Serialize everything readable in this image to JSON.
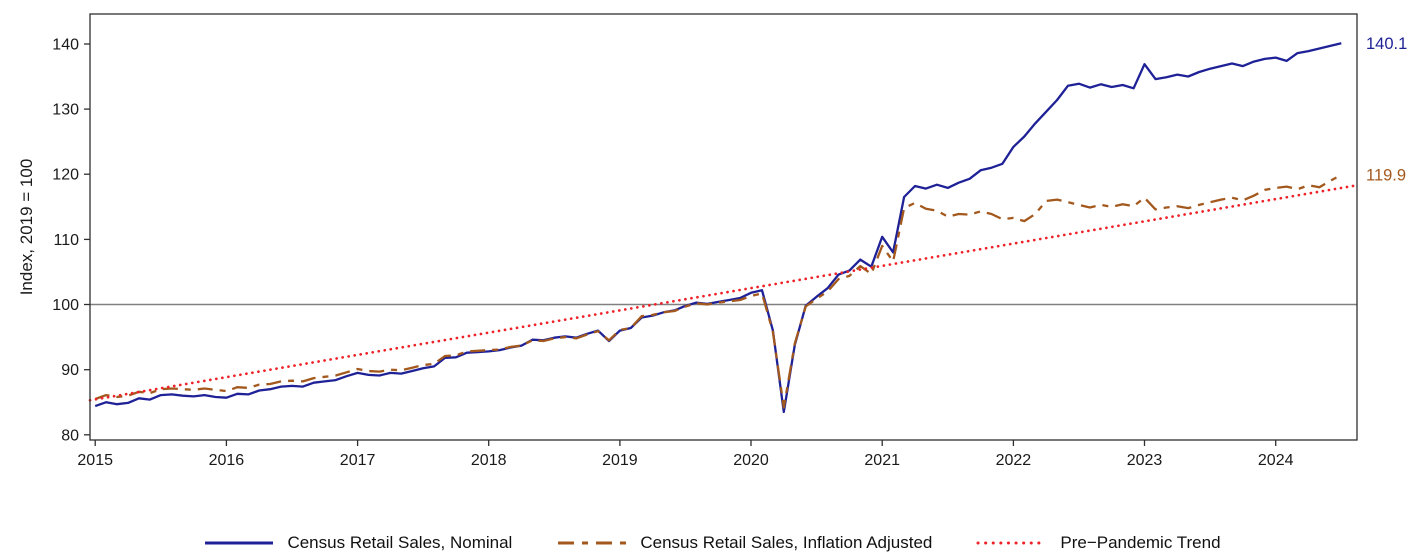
{
  "chart_data": {
    "type": "line",
    "title": "",
    "ylabel": "Index, 2019 = 100",
    "x_start": 2015.0,
    "x_step": 0.0833333,
    "xlim": [
      2014.96,
      2024.62
    ],
    "ylim": [
      79.2,
      144.6
    ],
    "yticks": [
      80,
      90,
      100,
      110,
      120,
      130,
      140
    ],
    "xticks": [
      2015,
      2016,
      2017,
      2018,
      2019,
      2020,
      2021,
      2022,
      2023,
      2024
    ],
    "reference_line_y": 100,
    "grid": "off",
    "legend_position": "bottom",
    "colors": {
      "axis": "#2f2f2f",
      "text": "#1a1a1a",
      "reference": "#808080",
      "nominal": "#1f2297",
      "real": "#a3591e",
      "trend": "#ee2228"
    },
    "series": [
      {
        "key": "nominal",
        "name": "Census Retail Sales, Nominal",
        "color": "#1f2297",
        "style": "solid",
        "end_label": "140.1",
        "values": [
          84.4,
          85.0,
          84.7,
          84.9,
          85.6,
          85.4,
          86.1,
          86.2,
          86.0,
          85.9,
          86.1,
          85.8,
          85.7,
          86.3,
          86.2,
          86.8,
          87.0,
          87.4,
          87.5,
          87.4,
          88.0,
          88.2,
          88.4,
          89.0,
          89.5,
          89.2,
          89.1,
          89.5,
          89.4,
          89.8,
          90.2,
          90.5,
          91.8,
          91.9,
          92.6,
          92.7,
          92.8,
          93.0,
          93.4,
          93.7,
          94.6,
          94.5,
          94.9,
          95.1,
          94.9,
          95.5,
          96.0,
          94.4,
          96.0,
          96.4,
          98.0,
          98.3,
          98.8,
          99.1,
          99.8,
          100.3,
          100.1,
          100.4,
          100.7,
          101.0,
          101.8,
          102.2,
          96.0,
          83.5,
          93.8,
          99.8,
          101.2,
          102.5,
          104.6,
          105.2,
          106.9,
          105.8,
          110.4,
          108.0,
          116.5,
          118.2,
          117.8,
          118.4,
          117.9,
          118.7,
          119.3,
          120.6,
          121.0,
          121.6,
          124.2,
          125.8,
          127.8,
          129.6,
          131.4,
          133.6,
          133.9,
          133.3,
          133.8,
          133.4,
          133.7,
          133.2,
          136.9,
          134.6,
          134.9,
          135.3,
          135.0,
          135.7,
          136.2,
          136.6,
          137.0,
          136.6,
          137.3,
          137.7,
          137.9,
          137.4,
          138.6,
          138.9,
          139.3,
          139.7,
          140.1
        ]
      },
      {
        "key": "real",
        "name": "Census Retail Sales, Inflation Adjusted",
        "color": "#a3591e",
        "style": "dashed",
        "end_label": "119.9",
        "values": [
          85.5,
          86.1,
          85.8,
          86.0,
          86.6,
          86.4,
          87.0,
          87.1,
          87.0,
          86.9,
          87.1,
          86.9,
          86.7,
          87.3,
          87.2,
          87.7,
          87.8,
          88.2,
          88.3,
          88.2,
          88.7,
          88.9,
          89.1,
          89.6,
          90.1,
          89.8,
          89.7,
          90.0,
          89.9,
          90.3,
          90.7,
          90.9,
          92.1,
          92.2,
          92.8,
          92.9,
          93.0,
          93.1,
          93.5,
          93.7,
          94.5,
          94.4,
          94.8,
          95.0,
          94.8,
          95.4,
          95.9,
          94.5,
          96.1,
          96.4,
          98.2,
          98.4,
          98.8,
          99.0,
          99.7,
          100.2,
          100.0,
          100.3,
          100.5,
          100.7,
          101.3,
          101.7,
          95.8,
          84.2,
          94.0,
          99.7,
          100.9,
          102.0,
          103.9,
          104.4,
          105.9,
          104.7,
          109.0,
          106.6,
          114.8,
          115.6,
          114.7,
          114.4,
          113.5,
          113.9,
          113.8,
          114.3,
          113.9,
          113.1,
          113.3,
          112.8,
          113.9,
          115.9,
          116.1,
          115.7,
          115.3,
          114.9,
          115.3,
          115.0,
          115.4,
          115.1,
          116.4,
          114.6,
          114.9,
          115.1,
          114.8,
          115.3,
          115.7,
          116.1,
          116.4,
          116.0,
          116.7,
          117.6,
          117.9,
          118.1,
          117.7,
          118.3,
          118.0,
          119.0,
          119.9
        ]
      },
      {
        "key": "trend",
        "name": "Pre−Pandemic Trend",
        "color": "#ee2228",
        "style": "dotted",
        "end_label": "",
        "trend": {
          "x": [
            2014.96,
            2024.62
          ],
          "y": [
            85.3,
            118.3
          ]
        }
      }
    ]
  }
}
